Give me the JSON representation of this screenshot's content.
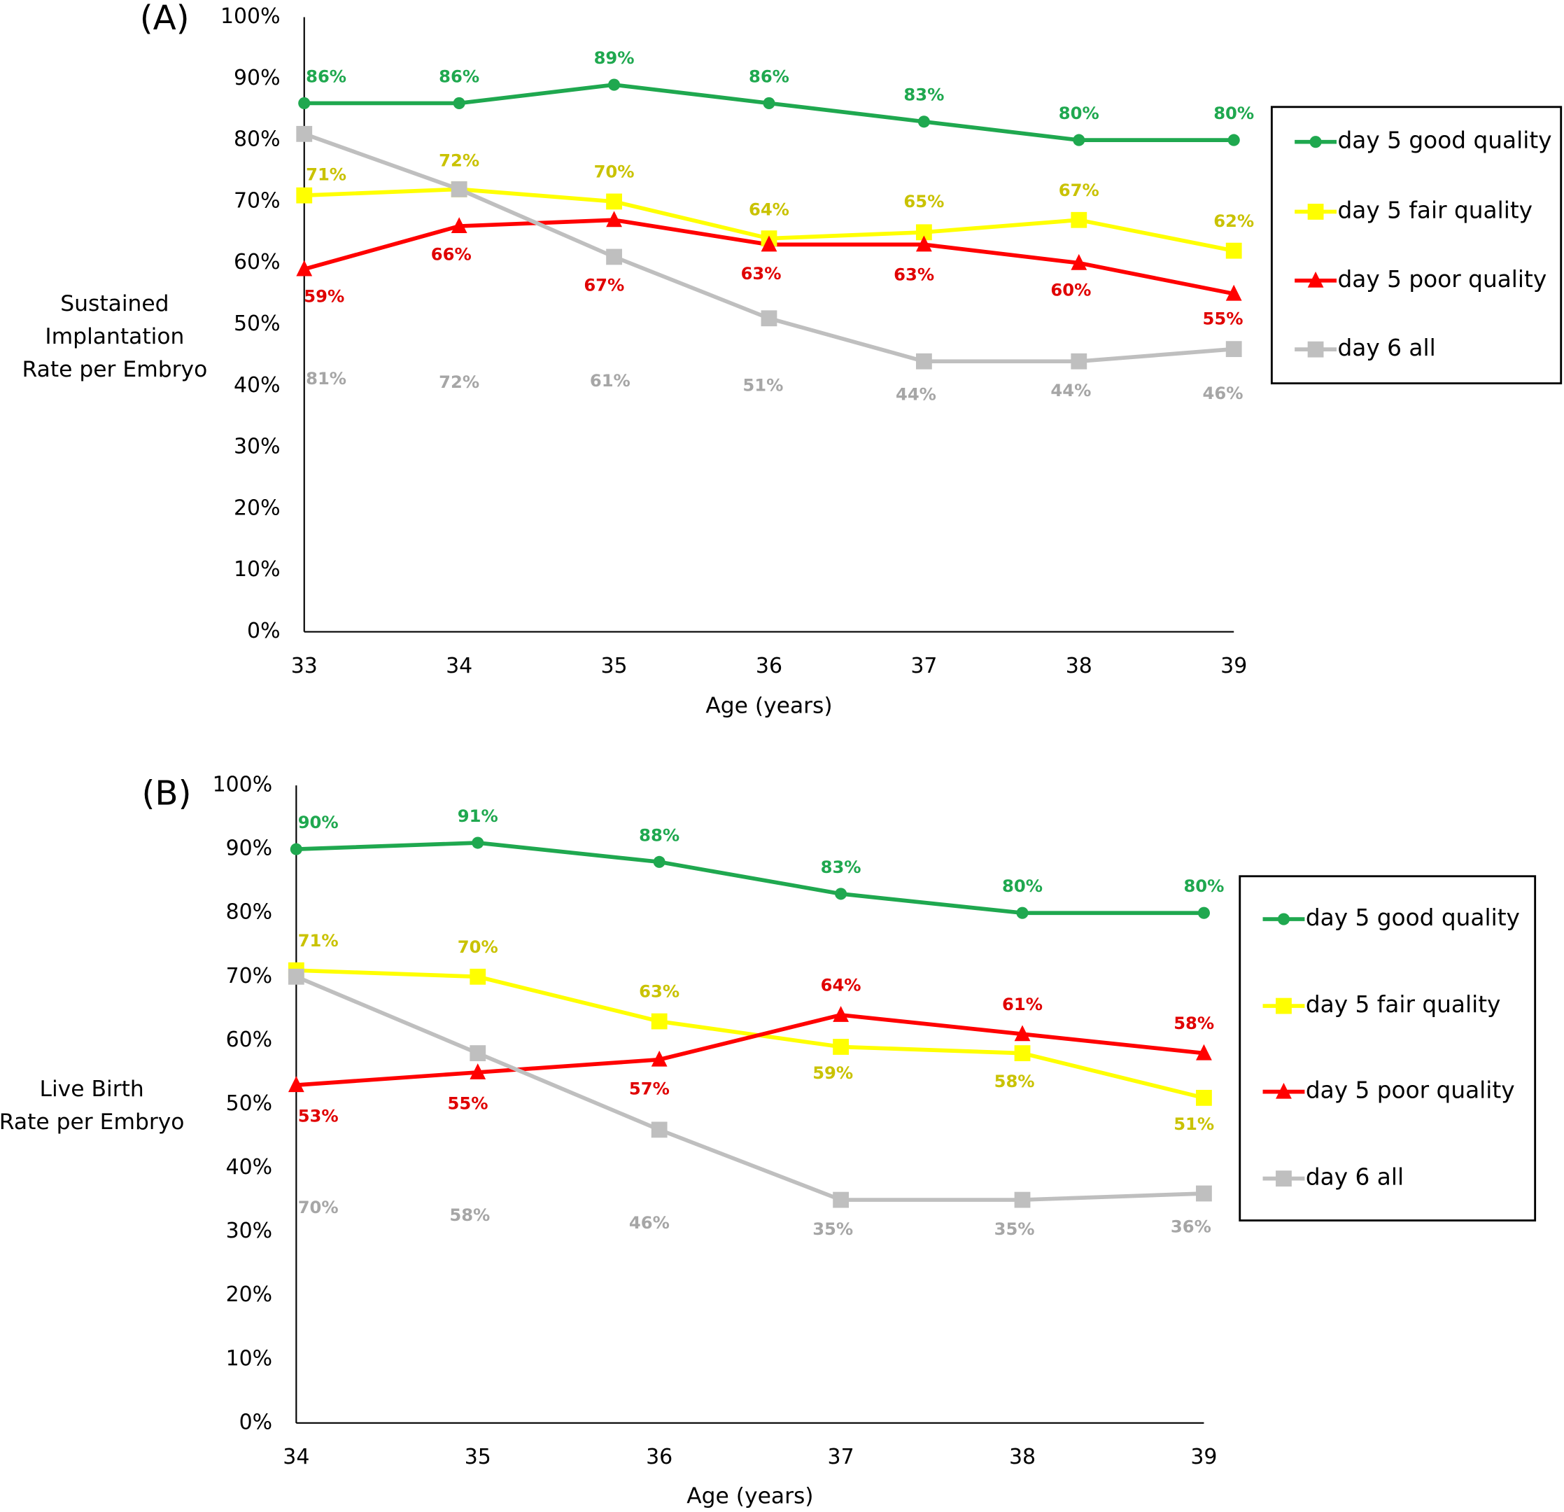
{
  "chart_data": [
    {
      "type": "line",
      "panel_label": "(A)",
      "ylabel": [
        "Sustained",
        "Implantation",
        "Rate per Embryo"
      ],
      "xlabel": "Age (years)",
      "x": [
        33,
        34,
        35,
        36,
        37,
        38,
        39
      ],
      "xlim": [
        33,
        39
      ],
      "xticks": [
        33,
        34,
        35,
        36,
        37,
        38,
        39
      ],
      "ylim": [
        0,
        100
      ],
      "yticks": [
        {
          "value": 0,
          "label": "0%"
        },
        {
          "value": 10,
          "label": "10%"
        },
        {
          "value": 20,
          "label": "20%"
        },
        {
          "value": 30,
          "label": "30%"
        },
        {
          "value": 40,
          "label": "40%"
        },
        {
          "value": 50,
          "label": "50%"
        },
        {
          "value": 60,
          "label": "60%"
        },
        {
          "value": 70,
          "label": "70%"
        },
        {
          "value": 80,
          "label": "80%"
        },
        {
          "value": 90,
          "label": "90%"
        },
        {
          "value": 100,
          "label": "100%"
        }
      ],
      "grid": false,
      "legend": "right",
      "series": [
        {
          "name": "day 5 good quality",
          "color": "#1fa84f",
          "label_color": "#1fa84f",
          "marker": "circle",
          "values": [
            86,
            86,
            89,
            86,
            83,
            80,
            80
          ],
          "value_labels": [
            "86%",
            "86%",
            "89%",
            "86%",
            "83%",
            "80%",
            "80%"
          ]
        },
        {
          "name": "day 5 fair quality",
          "color": "#ffff00",
          "label_color": "#c9c200",
          "marker": "square",
          "values": [
            71,
            72,
            70,
            64,
            65,
            67,
            62
          ],
          "value_labels": [
            "71%",
            "72%",
            "70%",
            "64%",
            "65%",
            "67%",
            "62%"
          ]
        },
        {
          "name": "day 5 poor quality",
          "color": "#ff0000",
          "label_color": "#e00000",
          "marker": "triangle",
          "values": [
            59,
            66,
            67,
            63,
            63,
            60,
            55
          ],
          "value_labels": [
            "59%",
            "66%",
            "67%",
            "63%",
            "63%",
            "60%",
            "55%"
          ]
        },
        {
          "name": "day 6 all",
          "color": "#bfbfbf",
          "label_color": "#a6a6a6",
          "marker": "square",
          "values": [
            81,
            72,
            61,
            51,
            44,
            44,
            46
          ],
          "value_labels": [
            "81%",
            "72%",
            "61%",
            "51%",
            "44%",
            "44%",
            "46%"
          ]
        }
      ]
    },
    {
      "type": "line",
      "panel_label": "(B)",
      "ylabel": [
        "Live Birth",
        "Rate per Embryo"
      ],
      "xlabel": "Age (years)",
      "x": [
        34,
        35,
        36,
        37,
        38,
        39
      ],
      "xlim": [
        34,
        39
      ],
      "xticks": [
        34,
        35,
        36,
        37,
        38,
        39
      ],
      "ylim": [
        0,
        100
      ],
      "yticks": [
        {
          "value": 0,
          "label": "0%"
        },
        {
          "value": 10,
          "label": "10%"
        },
        {
          "value": 20,
          "label": "20%"
        },
        {
          "value": 30,
          "label": "30%"
        },
        {
          "value": 40,
          "label": "40%"
        },
        {
          "value": 50,
          "label": "50%"
        },
        {
          "value": 60,
          "label": "60%"
        },
        {
          "value": 70,
          "label": "70%"
        },
        {
          "value": 80,
          "label": "80%"
        },
        {
          "value": 90,
          "label": "90%"
        },
        {
          "value": 100,
          "label": "100%"
        }
      ],
      "grid": false,
      "legend": "right",
      "series": [
        {
          "name": "day 5 good quality",
          "color": "#1fa84f",
          "label_color": "#1fa84f",
          "marker": "circle",
          "values": [
            90,
            91,
            88,
            83,
            80,
            80
          ],
          "value_labels": [
            "90%",
            "91%",
            "88%",
            "83%",
            "80%",
            "80%"
          ]
        },
        {
          "name": "day 5 fair quality",
          "color": "#ffff00",
          "label_color": "#c9c200",
          "marker": "square",
          "values": [
            71,
            70,
            63,
            59,
            58,
            51
          ],
          "value_labels": [
            "71%",
            "70%",
            "63%",
            "59%",
            "58%",
            "51%"
          ]
        },
        {
          "name": "day 5 poor quality",
          "color": "#ff0000",
          "label_color": "#e00000",
          "marker": "triangle",
          "values": [
            53,
            55,
            57,
            64,
            61,
            58
          ],
          "value_labels": [
            "53%",
            "55%",
            "57%",
            "64%",
            "61%",
            "58%"
          ]
        },
        {
          "name": "day 6 all",
          "color": "#bfbfbf",
          "label_color": "#a6a6a6",
          "marker": "square",
          "values": [
            70,
            58,
            46,
            35,
            35,
            36
          ],
          "value_labels": [
            "70%",
            "58%",
            "46%",
            "35%",
            "35%",
            "36%"
          ]
        }
      ]
    }
  ]
}
